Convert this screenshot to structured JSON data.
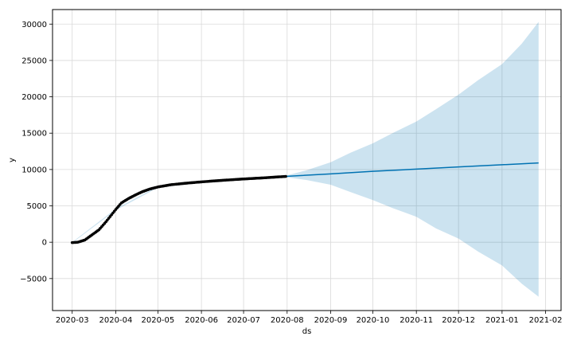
{
  "chart_data": {
    "type": "line",
    "title": "",
    "xlabel": "ds",
    "ylabel": "y",
    "xlim": [
      "2020-02-16",
      "2021-02-12"
    ],
    "ylim": [
      -9400,
      32000
    ],
    "grid": true,
    "x_ticks": [
      "2020-03",
      "2020-04",
      "2020-05",
      "2020-06",
      "2020-07",
      "2020-08",
      "2020-09",
      "2020-10",
      "2020-11",
      "2020-12",
      "2021-01",
      "2021-02"
    ],
    "y_ticks": [
      -5000,
      0,
      5000,
      10000,
      15000,
      20000,
      25000,
      30000
    ],
    "colors": {
      "forecast": "#0072B2",
      "interval": "#0072B2",
      "observed": "#000000",
      "grid": "#d9d9d9"
    },
    "observed": {
      "x": [
        "2020-03-01",
        "2020-03-05",
        "2020-03-10",
        "2020-03-15",
        "2020-03-20",
        "2020-03-25",
        "2020-04-01",
        "2020-04-05",
        "2020-04-10",
        "2020-04-15",
        "2020-04-20",
        "2020-04-25",
        "2020-05-01",
        "2020-05-10",
        "2020-05-20",
        "2020-06-01",
        "2020-06-15",
        "2020-07-01",
        "2020-07-15",
        "2020-07-31"
      ],
      "y": [
        -50,
        0,
        300,
        1000,
        1700,
        2800,
        4500,
        5400,
        6000,
        6500,
        6950,
        7300,
        7600,
        7900,
        8100,
        8300,
        8500,
        8700,
        8850,
        9050
      ]
    },
    "forecast": {
      "x": [
        "2020-03-01",
        "2020-03-05",
        "2020-03-10",
        "2020-03-15",
        "2020-03-20",
        "2020-03-25",
        "2020-04-01",
        "2020-04-05",
        "2020-04-10",
        "2020-04-15",
        "2020-04-20",
        "2020-04-25",
        "2020-05-01",
        "2020-05-10",
        "2020-05-20",
        "2020-06-01",
        "2020-06-15",
        "2020-07-01",
        "2020-07-15",
        "2020-07-31",
        "2020-09-01",
        "2020-10-01",
        "2020-11-01",
        "2020-12-01",
        "2021-01-01",
        "2021-01-27"
      ],
      "y": [
        -50,
        0,
        300,
        1000,
        1700,
        2800,
        4500,
        5400,
        6000,
        6500,
        6950,
        7300,
        7600,
        7900,
        8100,
        8300,
        8500,
        8700,
        8850,
        9050,
        9400,
        9750,
        10050,
        10350,
        10650,
        10900
      ]
    },
    "interval": {
      "x": [
        "2020-03-01",
        "2020-04-01",
        "2020-05-01",
        "2020-06-01",
        "2020-07-01",
        "2020-07-31",
        "2020-08-15",
        "2020-09-01",
        "2020-09-15",
        "2020-10-01",
        "2020-10-15",
        "2020-11-01",
        "2020-11-15",
        "2020-12-01",
        "2020-12-15",
        "2021-01-01",
        "2021-01-15",
        "2021-01-27"
      ],
      "upper": [
        0,
        4600,
        7700,
        8400,
        8800,
        9150,
        9900,
        11000,
        12300,
        13600,
        15000,
        16600,
        18300,
        20300,
        22300,
        24500,
        27300,
        30300
      ],
      "lower": [
        -100,
        4400,
        7500,
        8200,
        8600,
        8950,
        8550,
        7900,
        6900,
        5800,
        4700,
        3500,
        1900,
        500,
        -1300,
        -3200,
        -5700,
        -7500
      ]
    }
  }
}
